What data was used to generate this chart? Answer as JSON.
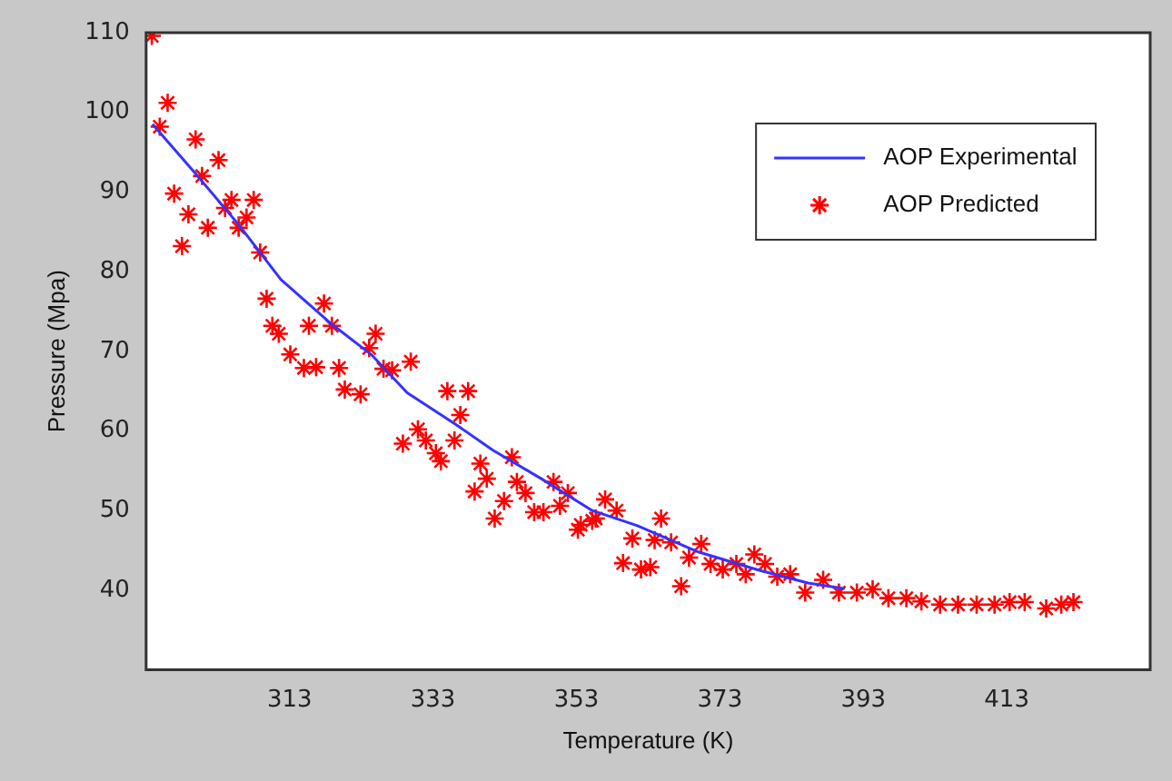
{
  "chart_data": {
    "type": "scatter",
    "xlabel": "Temperature (K)",
    "ylabel": "Pressure (Mpa)",
    "xlim": [
      293,
      433
    ],
    "xticks": [
      313,
      333,
      353,
      373,
      393,
      413
    ],
    "ylim": [
      30,
      110
    ],
    "yticks": [
      40,
      50,
      60,
      70,
      80,
      90,
      100,
      110
    ],
    "grid": false,
    "legend": "top right",
    "series": [
      {
        "name": "AOP Experimental",
        "type": "line",
        "marker": "none",
        "color": "#3333ff",
        "x": [
          293.9,
          299.9,
          305.9,
          311.8,
          318.6,
          324.5,
          329.4,
          336.2,
          341.3,
          348.1,
          355.2,
          361.5,
          370.0,
          378.5,
          385.3,
          390.4
        ],
        "values": [
          98.5,
          92.3,
          85.9,
          79.0,
          73.6,
          69.5,
          64.8,
          60.8,
          57.6,
          54.0,
          50.0,
          48.1,
          44.8,
          42.5,
          40.9,
          40.2
        ]
      },
      {
        "name": "AOP Predicted",
        "marker": "cross",
        "color": "#ff0000",
        "x": [
          293.8,
          296.0,
          294.9,
          296.9,
          298.9,
          298.0,
          299.9,
          300.8,
          303.1,
          301.6,
          304.0,
          304.9,
          305.9,
          307.0,
          308.0,
          308.9,
          309.8,
          310.6,
          311.5,
          313.1,
          315.0,
          316.7,
          315.7,
          317.8,
          318.9,
          319.9,
          320.7,
          322.9,
          324.1,
          325.0,
          326.1,
          327.3,
          329.9,
          335.0,
          337.9,
          328.8,
          330.9,
          332.0,
          333.4,
          334.1,
          336.0,
          336.8,
          339.6,
          340.5,
          338.8,
          342.9,
          341.6,
          344.0,
          344.7,
          345.9,
          347.1,
          348.4,
          349.8,
          350.7,
          351.8,
          353.2,
          355.2,
          353.6,
          355.7,
          357.0,
          358.6,
          360.8,
          359.5,
          362.0,
          363.3,
          364.8,
          363.9,
          366.2,
          367.6,
          368.7,
          370.4,
          371.7,
          373.4,
          375.3,
          376.6,
          377.8,
          379.3,
          381.0,
          382.8,
          384.9,
          387.4,
          389.6,
          392.1,
          394.3,
          396.5,
          399.0,
          401.1,
          403.7,
          406.2,
          408.8,
          411.3,
          413.4,
          415.5,
          418.5,
          420.6,
          422.3
        ],
        "values": [
          109.6,
          101.2,
          98.2,
          89.8,
          87.2,
          83.2,
          96.6,
          92.0,
          94.0,
          85.5,
          88.0,
          89.0,
          85.5,
          86.8,
          89.0,
          82.4,
          76.6,
          73.2,
          72.2,
          69.6,
          67.9,
          68.0,
          73.2,
          76.0,
          73.2,
          67.9,
          65.2,
          64.6,
          70.4,
          72.2,
          67.8,
          67.6,
          68.7,
          65.0,
          65.0,
          58.4,
          60.2,
          58.8,
          57.2,
          56.2,
          58.8,
          62.0,
          55.9,
          54.0,
          52.4,
          51.2,
          49.0,
          56.7,
          53.6,
          52.2,
          49.8,
          49.8,
          53.6,
          50.6,
          52.2,
          47.6,
          48.7,
          48.2,
          49.0,
          51.4,
          50.0,
          46.5,
          43.4,
          42.6,
          42.9,
          49.0,
          46.3,
          46.0,
          40.5,
          44.1,
          45.8,
          43.3,
          42.6,
          43.3,
          42.0,
          44.5,
          43.3,
          41.7,
          42.0,
          39.7,
          41.3,
          39.7,
          39.7,
          40.1,
          39.0,
          39.0,
          38.6,
          38.2,
          38.2,
          38.2,
          38.2,
          38.5,
          38.5,
          37.7,
          38.2,
          38.5
        ]
      }
    ]
  }
}
